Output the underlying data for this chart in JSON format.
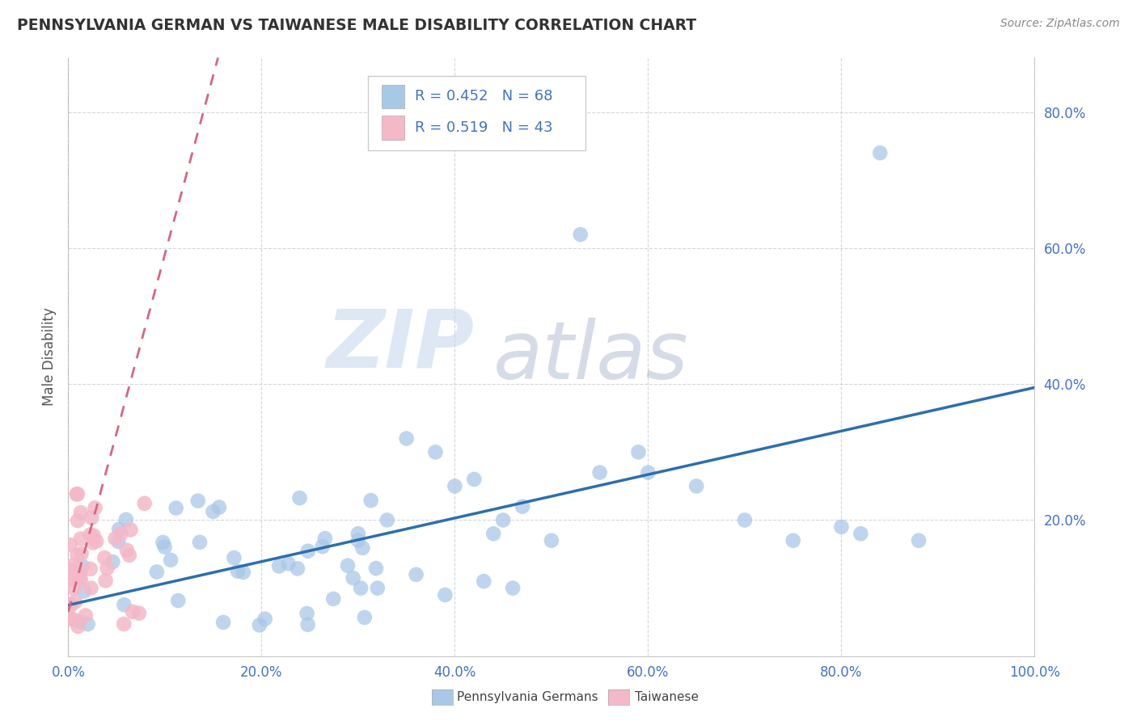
{
  "title": "PENNSYLVANIA GERMAN VS TAIWANESE MALE DISABILITY CORRELATION CHART",
  "source": "Source: ZipAtlas.com",
  "ylabel": "Male Disability",
  "watermark_zip": "ZIP",
  "watermark_atlas": "atlas",
  "legend_labels": [
    "Pennsylvania Germans",
    "Taiwanese"
  ],
  "r_pa": 0.452,
  "n_pa": 68,
  "r_tw": 0.519,
  "n_tw": 43,
  "pa_color": "#a8c8e8",
  "tw_color": "#f4b8c8",
  "pa_line_color": "#2c6fad",
  "tw_line_color": "#d46880",
  "xlim": [
    0.0,
    1.0
  ],
  "ylim": [
    0.0,
    0.88
  ],
  "xtick_vals": [
    0.0,
    0.2,
    0.4,
    0.6,
    0.8,
    1.0
  ],
  "xtick_labels": [
    "0.0%",
    "20.0%",
    "40.0%",
    "60.0%",
    "80.0%",
    "100.0%"
  ],
  "ytick_vals": [
    0.2,
    0.4,
    0.6,
    0.8
  ],
  "ytick_labels": [
    "20.0%",
    "40.0%",
    "60.0%",
    "80.0%"
  ],
  "pa_line_x0": 0.0,
  "pa_line_x1": 1.0,
  "pa_line_y0": 0.075,
  "pa_line_y1": 0.395,
  "tw_line_x0": 0.0,
  "tw_line_x1": 0.155,
  "tw_line_y0": 0.065,
  "tw_line_y1": 0.88,
  "background_color": "#ffffff",
  "grid_color": "#cccccc",
  "title_color": "#333333",
  "tick_label_color": "#4472c4",
  "axis_label_color": "#555555",
  "legend_text_color": "#4472c4"
}
